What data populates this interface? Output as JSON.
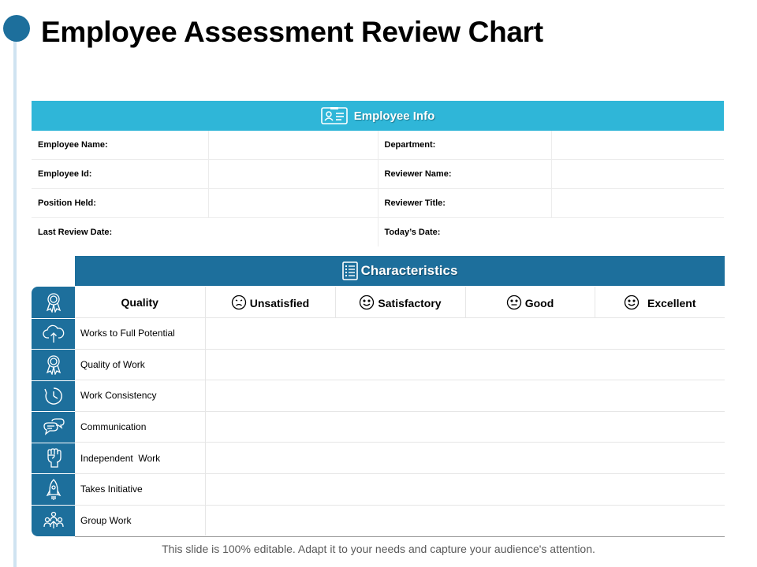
{
  "title": "Employee Assessment Review Chart",
  "colors": {
    "accent_dark": "#1d6f9c",
    "accent_light": "#2fb6d8",
    "line": "#cfe3f1"
  },
  "employee_info": {
    "header": "Employee Info",
    "header_icon": "id-card-icon",
    "rows": [
      {
        "left_label": "Employee Name:",
        "right_label": "Department:"
      },
      {
        "left_label": "Employee Id:",
        "right_label": "Reviewer Name:"
      },
      {
        "left_label": "Position Held:",
        "right_label": "Reviewer Title:"
      },
      {
        "left_label": "Last Review Date:",
        "right_label": "Today’s Date:"
      }
    ]
  },
  "characteristics": {
    "header": "Characteristics",
    "header_icon": "checklist-icon",
    "columns": [
      {
        "label": "Quality",
        "icon": ""
      },
      {
        "label": "Unsatisfied",
        "icon": "sad-face-icon"
      },
      {
        "label": "Satisfactory",
        "icon": "smile-face-icon"
      },
      {
        "label": "Good",
        "icon": "neutral-face-icon"
      },
      {
        "label": "Excellent",
        "icon": "smile-face-icon"
      }
    ],
    "header_row_icon": "award-ribbon-icon",
    "rows": [
      {
        "label": "Works to Full Potential",
        "icon": "cloud-upload-icon"
      },
      {
        "label": "Quality of Work",
        "icon": "award-ribbon-icon"
      },
      {
        "label": "Work Consistency",
        "icon": "stopwatch-icon"
      },
      {
        "label": "Communication",
        "icon": "chat-bubbles-icon"
      },
      {
        "label": "Independent  Work",
        "icon": "raised-fist-icon"
      },
      {
        "label": "Takes Initiative",
        "icon": "rocket-icon"
      },
      {
        "label": "Group Work",
        "icon": "team-icon"
      }
    ]
  },
  "footer": "This slide is 100% editable. Adapt it to your needs and capture your audience's attention."
}
